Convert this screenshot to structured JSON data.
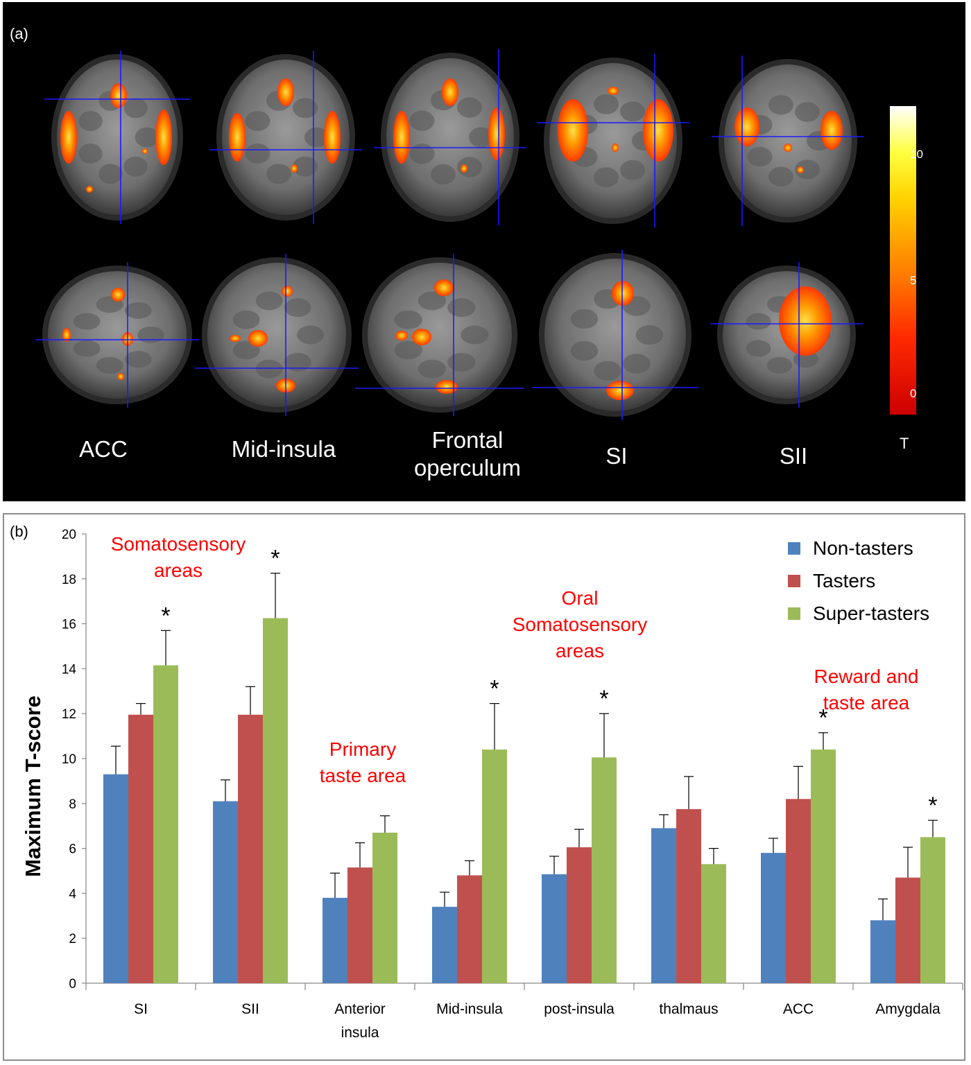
{
  "panel_a": {
    "letter": "(a)",
    "region_labels": [
      "ACC",
      "Mid-insula",
      "Frontal\noperculum",
      "SI",
      "SII"
    ],
    "colorbar": {
      "ticks": [
        "10",
        "5",
        "0"
      ],
      "tick_values": [
        10,
        5,
        0
      ],
      "range": [
        -1,
        12
      ],
      "unit_label": "T",
      "colors": [
        "#cc0000",
        "#ff4500",
        "#ff9900",
        "#ffe600",
        "#ffffff"
      ]
    }
  },
  "panel_b": {
    "letter": "(b)"
  },
  "chart_data": {
    "type": "bar",
    "ylabel": "Maximum T-score",
    "xlabel": "",
    "ylim": [
      0,
      20
    ],
    "yticks": [
      0,
      2,
      4,
      6,
      8,
      10,
      12,
      14,
      16,
      18,
      20
    ],
    "categories": [
      "SI",
      "SII",
      "Anterior\ninsula",
      "Mid-insula",
      "post-insula",
      "thalmaus",
      "ACC",
      "Amygdala"
    ],
    "series": [
      {
        "name": "Non-tasters",
        "color": "#4f81bd",
        "values": [
          9.3,
          8.1,
          3.8,
          3.4,
          4.85,
          6.9,
          5.8,
          2.8
        ],
        "errors": [
          1.25,
          0.95,
          1.1,
          0.65,
          0.8,
          0.6,
          0.65,
          0.95
        ]
      },
      {
        "name": "Tasters",
        "color": "#c0504d",
        "values": [
          11.95,
          11.95,
          5.15,
          4.8,
          6.05,
          7.75,
          8.2,
          4.7
        ],
        "errors": [
          0.5,
          1.25,
          1.1,
          0.65,
          0.8,
          1.45,
          1.45,
          1.35
        ]
      },
      {
        "name": "Super-tasters",
        "color": "#9bbb59",
        "values": [
          14.15,
          16.25,
          6.7,
          10.4,
          10.05,
          5.3,
          10.4,
          6.5
        ],
        "errors": [
          1.55,
          2.0,
          0.75,
          2.05,
          1.95,
          0.7,
          0.75,
          0.75
        ]
      }
    ],
    "significance_marker": "*",
    "significant_super_tasters": [
      true,
      true,
      false,
      true,
      true,
      false,
      true,
      true
    ],
    "legend_position": "top-right",
    "grid": false,
    "annotations": [
      {
        "text": "Somatosensory\nareas",
        "color": "#ff0000"
      },
      {
        "text": "Primary\ntaste area",
        "color": "#ff0000"
      },
      {
        "text": "Oral\nSomatosensory\nareas",
        "color": "#ff0000"
      },
      {
        "text": "Reward and\ntaste area",
        "color": "#ff0000"
      }
    ]
  }
}
